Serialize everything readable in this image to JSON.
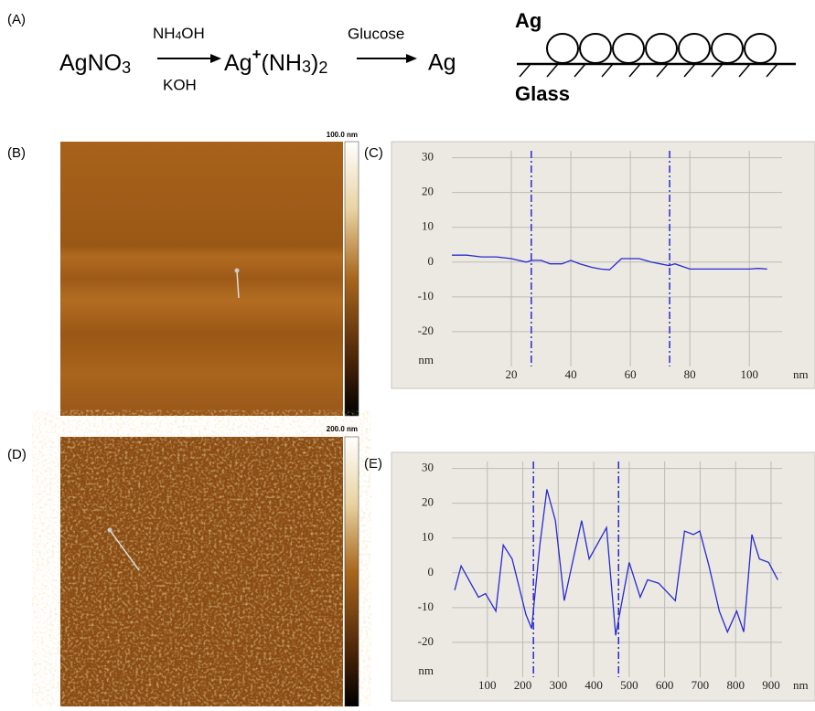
{
  "panel_labels": [
    "(A)",
    "(B)",
    "(C)",
    "(D)",
    "(E)"
  ],
  "scheme": {
    "reactant": [
      "AgNO",
      "3"
    ],
    "reagent1_top": [
      "NH",
      "4",
      "OH"
    ],
    "reagent1_bottom": "KOH",
    "intermediate": [
      "Ag",
      "+",
      "(NH",
      "3",
      ")",
      "2"
    ],
    "reagent2": "Glucose",
    "product": "Ag",
    "diagram_top": "Ag",
    "diagram_bottom": "Glass"
  },
  "afm_images": [
    {
      "scale_label": "100.0 nm"
    },
    {
      "scale_label": "200.0 nm"
    }
  ],
  "chart_data": [
    {
      "type": "line",
      "color": "#2a2ad0",
      "xlabel": "nm",
      "ylabel": "nm",
      "xlim": [
        0,
        111
      ],
      "ylim": [
        -30,
        32
      ],
      "xticks": [
        20,
        40,
        60,
        80,
        100
      ],
      "yticks": [
        30,
        20,
        10,
        0,
        -10,
        -20
      ],
      "grid": true,
      "cursors": [
        26.7,
        73.2
      ],
      "x": [
        0,
        5,
        10,
        15,
        20,
        25,
        27,
        30,
        33,
        37,
        40,
        43,
        47,
        50,
        53,
        57,
        60,
        63,
        67,
        70,
        73,
        75,
        80,
        90,
        100,
        103,
        106
      ],
      "values": [
        2,
        2,
        1.5,
        1.5,
        1,
        0,
        0.5,
        0.5,
        -0.5,
        -0.5,
        0.5,
        -0.5,
        -1.5,
        -2,
        -2.2,
        1,
        1,
        1,
        0,
        -0.5,
        -1,
        -0.5,
        -2,
        -2,
        -2,
        -1.8,
        -2
      ]
    },
    {
      "type": "line",
      "color": "#2a2ad0",
      "xlabel": "nm",
      "ylabel": "nm",
      "xlim": [
        0,
        931
      ],
      "ylim": [
        -30,
        32
      ],
      "xticks": [
        100,
        200,
        300,
        400,
        500,
        600,
        700,
        800,
        900
      ],
      "yticks": [
        30,
        20,
        10,
        0,
        -10,
        -20
      ],
      "grid": true,
      "cursors": [
        230,
        470
      ],
      "x": [
        8,
        26,
        75,
        95,
        124,
        145,
        170,
        209,
        225,
        248,
        268,
        292,
        317,
        338,
        366,
        387,
        436,
        462,
        500,
        531,
        552,
        583,
        630,
        656,
        681,
        699,
        725,
        754,
        777,
        803,
        823,
        846,
        867,
        893,
        919
      ],
      "values": [
        -5,
        2,
        -7,
        -6,
        -11,
        8,
        4,
        -12,
        -16,
        8,
        24,
        15,
        -8,
        2,
        15,
        4,
        13,
        -18,
        3,
        -7,
        -2,
        -3,
        -8,
        12,
        11,
        12,
        2,
        -11,
        -17,
        -11,
        -17,
        11,
        4,
        3,
        -2
      ]
    }
  ]
}
